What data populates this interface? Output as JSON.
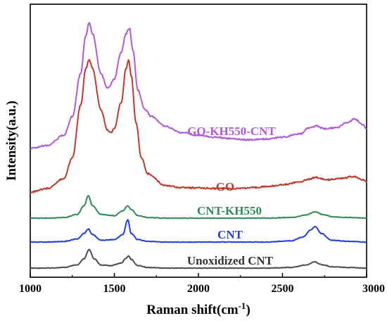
{
  "chart_data": {
    "type": "line",
    "xlabel": "Raman shift(cm",
    "xlabel_sup": "-1",
    "xlabel_end": ")",
    "ylabel": "Intensity(a.u.)",
    "xlim": [
      1000,
      3000
    ],
    "x_ticks": [
      1000,
      1500,
      2000,
      2500,
      3000
    ],
    "x_tick_labels": [
      "1000",
      "1500",
      "2000",
      "2500",
      "3000"
    ],
    "y_ticks_shown": false,
    "legend": "none",
    "grid": false,
    "series": [
      {
        "name": "Unoxidized CNT",
        "color": "#4d4d4d",
        "x": [
          1000,
          1100,
          1200,
          1280,
          1320,
          1350,
          1380,
          1420,
          1480,
          1540,
          1570,
          1585,
          1600,
          1640,
          1700,
          1800,
          2000,
          2200,
          2400,
          2550,
          2640,
          2690,
          2740,
          2800,
          2900,
          3000
        ],
        "y": [
          0.0,
          0.0,
          0.01,
          0.05,
          0.15,
          0.3,
          0.15,
          0.05,
          0.04,
          0.08,
          0.16,
          0.2,
          0.14,
          0.04,
          0.01,
          0.0,
          0.0,
          0.0,
          0.0,
          0.01,
          0.05,
          0.1,
          0.05,
          0.02,
          0.01,
          0.0
        ]
      },
      {
        "name": "CNT",
        "color": "#1f3fdd",
        "x": [
          1000,
          1100,
          1200,
          1280,
          1320,
          1345,
          1370,
          1420,
          1500,
          1550,
          1580,
          1600,
          1640,
          1700,
          1800,
          2000,
          2200,
          2400,
          2550,
          2620,
          2670,
          2695,
          2730,
          2790,
          2900,
          3000
        ],
        "y": [
          0.0,
          0.0,
          0.01,
          0.05,
          0.14,
          0.21,
          0.12,
          0.03,
          0.04,
          0.12,
          0.36,
          0.14,
          0.04,
          0.01,
          0.0,
          0.0,
          0.0,
          0.0,
          0.02,
          0.08,
          0.2,
          0.25,
          0.14,
          0.03,
          0.01,
          0.0
        ]
      },
      {
        "name": "CNT-KH550",
        "color": "#2e8b57",
        "x": [
          1000,
          1100,
          1200,
          1280,
          1320,
          1345,
          1370,
          1420,
          1500,
          1550,
          1580,
          1600,
          1640,
          1700,
          1800,
          2000,
          2200,
          2400,
          2550,
          2640,
          2690,
          2740,
          2800,
          2900,
          3000
        ],
        "y": [
          0.0,
          0.0,
          0.01,
          0.06,
          0.2,
          0.36,
          0.2,
          0.06,
          0.04,
          0.12,
          0.2,
          0.14,
          0.04,
          0.01,
          0.0,
          0.0,
          0.0,
          0.0,
          0.01,
          0.05,
          0.1,
          0.06,
          0.02,
          0.01,
          0.0
        ]
      },
      {
        "name": "GO",
        "color": "#c0392b",
        "x": [
          1000,
          1100,
          1200,
          1250,
          1300,
          1330,
          1350,
          1370,
          1420,
          1460,
          1480,
          1500,
          1540,
          1570,
          1585,
          1600,
          1630,
          1660,
          1700,
          1800,
          1900,
          2000,
          2100,
          2200,
          2300,
          2400,
          2500,
          2600,
          2650,
          2700,
          2760,
          2850,
          2920,
          2980,
          3000
        ],
        "y": [
          0.0,
          0.08,
          0.3,
          0.75,
          1.9,
          2.7,
          2.9,
          2.7,
          1.8,
          1.35,
          1.3,
          1.4,
          1.95,
          2.7,
          2.9,
          2.55,
          1.5,
          0.75,
          0.4,
          0.15,
          0.1,
          0.09,
          0.08,
          0.08,
          0.09,
          0.12,
          0.16,
          0.22,
          0.28,
          0.32,
          0.27,
          0.3,
          0.34,
          0.26,
          0.22
        ]
      },
      {
        "name": "GO-KH550-CNT",
        "color": "#b05ad7",
        "x": [
          1000,
          1100,
          1200,
          1250,
          1300,
          1330,
          1350,
          1370,
          1420,
          1460,
          1500,
          1540,
          1570,
          1590,
          1610,
          1640,
          1680,
          1720,
          1800,
          1900,
          2000,
          2100,
          2200,
          2300,
          2400,
          2500,
          2600,
          2660,
          2700,
          2750,
          2820,
          2880,
          2930,
          2980,
          3000
        ],
        "y": [
          0.0,
          0.08,
          0.35,
          0.85,
          2.0,
          3.0,
          3.35,
          3.05,
          2.0,
          1.6,
          1.85,
          2.55,
          3.05,
          3.2,
          2.6,
          1.55,
          1.05,
          0.85,
          0.6,
          0.42,
          0.35,
          0.3,
          0.26,
          0.23,
          0.25,
          0.3,
          0.38,
          0.55,
          0.6,
          0.52,
          0.55,
          0.68,
          0.78,
          0.62,
          0.5
        ]
      }
    ]
  }
}
